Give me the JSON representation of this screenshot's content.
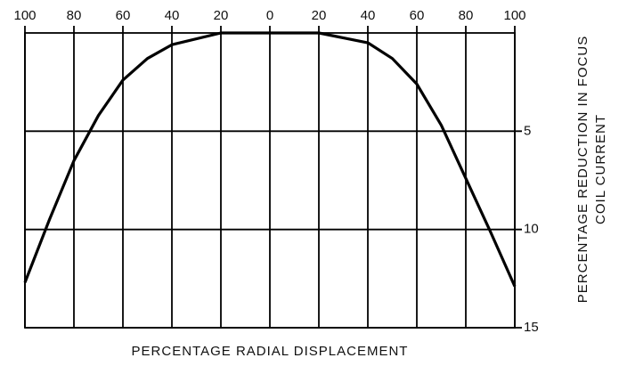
{
  "chart_data": {
    "type": "line",
    "x_label": "PERCENTAGE RADIAL DISPLACEMENT",
    "y_label": [
      "PERCENTAGE REDUCTION IN FOCUS",
      "COIL CURRENT"
    ],
    "x": [
      -100,
      -90,
      -80,
      -70,
      -60,
      -50,
      -40,
      -20,
      0,
      20,
      40,
      50,
      60,
      70,
      80,
      90,
      100
    ],
    "values": [
      12.7,
      9.5,
      6.5,
      4.2,
      2.4,
      1.3,
      0.6,
      0,
      0,
      0,
      0.5,
      1.3,
      2.6,
      4.7,
      7.4,
      10.1,
      12.9
    ],
    "color": "#000000",
    "xlim": [
      -100,
      100
    ],
    "xticks": [
      {
        "value": -100,
        "label": "100"
      },
      {
        "value": -80,
        "label": "80"
      },
      {
        "value": -60,
        "label": "60"
      },
      {
        "value": -40,
        "label": "40"
      },
      {
        "value": -20,
        "label": "20"
      },
      0,
      20,
      40,
      60,
      80,
      100
    ],
    "ylim": [
      0,
      15
    ],
    "yticks": [
      5,
      10,
      15
    ],
    "y_inverted": true,
    "grid": true
  }
}
